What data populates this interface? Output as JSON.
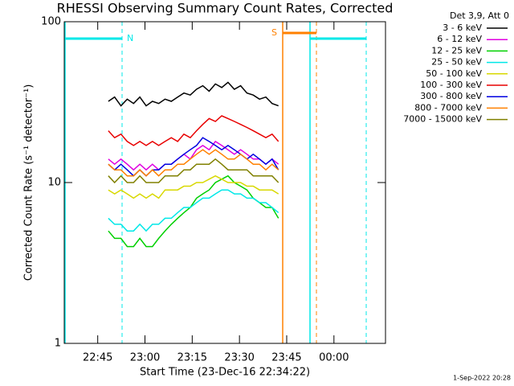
{
  "chart_data": {
    "type": "line",
    "title": "RHESSI Observing Summary Count Rates, Corrected",
    "xlabel": "Start Time (23-Dec-16 22:34:22)",
    "ylabel": "Corrected Count Rate (s⁻¹ detector⁻¹)",
    "legend_title": "Det 3,9, Att 0",
    "footer": "1-Sep-2022 20:28",
    "annotations": [
      "N",
      "S"
    ],
    "log_y": true,
    "legend": "outside right",
    "xlim": [
      0,
      102
    ],
    "ylim": [
      1,
      100
    ],
    "yticks": [
      1,
      10,
      100
    ],
    "xticks": [
      {
        "value": 10.63,
        "label": "22:45"
      },
      {
        "value": 25.63,
        "label": "23:00"
      },
      {
        "value": 40.63,
        "label": "23:15"
      },
      {
        "value": 55.63,
        "label": "23:30"
      },
      {
        "value": 70.63,
        "label": "23:45"
      },
      {
        "value": 85.63,
        "label": "00:00"
      }
    ],
    "x": [
      14,
      16,
      18,
      20,
      22,
      24,
      26,
      28,
      30,
      32,
      34,
      36,
      38,
      40,
      42,
      44,
      46,
      48,
      50,
      52,
      54,
      56,
      58,
      60,
      62,
      64,
      66,
      68
    ],
    "series": [
      {
        "name": "3 - 6 keV",
        "color": "#000000",
        "values": [
          32,
          34,
          30,
          33,
          31,
          34,
          30,
          32,
          31,
          33,
          32,
          34,
          36,
          35,
          38,
          40,
          37,
          41,
          39,
          42,
          38,
          40,
          36,
          35,
          33,
          34,
          31,
          30
        ]
      },
      {
        "name": "6 - 12 keV",
        "color": "#e000e0",
        "values": [
          14,
          13,
          14,
          13,
          12,
          13,
          12,
          13,
          12,
          13,
          13,
          14,
          15,
          14,
          16,
          17,
          16,
          18,
          17,
          16,
          15,
          16,
          15,
          14,
          14,
          13,
          14,
          13
        ]
      },
      {
        "name": "12 - 25 keV",
        "color": "#00d000",
        "values": [
          5,
          4.5,
          4.5,
          4,
          4,
          4.5,
          4,
          4,
          4.5,
          5,
          5.5,
          6,
          6.5,
          7,
          8,
          8.5,
          9,
          10,
          10.5,
          11,
          10,
          9.5,
          9,
          8,
          7.5,
          7,
          7,
          6
        ]
      },
      {
        "name": "25 - 50 keV",
        "color": "#00e8e8",
        "values": [
          6,
          5.5,
          5.5,
          5,
          5,
          5.5,
          5,
          5.5,
          5.5,
          6,
          6,
          6.5,
          7,
          7,
          7.5,
          8,
          8,
          8.5,
          9,
          9,
          8.5,
          8.5,
          8,
          8,
          7.5,
          7.5,
          7,
          6.5
        ]
      },
      {
        "name": "50 - 100 keV",
        "color": "#d8d800",
        "values": [
          9,
          8.5,
          9,
          8.5,
          8,
          8.5,
          8,
          8.5,
          8,
          9,
          9,
          9,
          9.5,
          9.5,
          10,
          10,
          10.5,
          11,
          10.5,
          10,
          10,
          10,
          9.5,
          9.5,
          9,
          9,
          9,
          8.5
        ]
      },
      {
        "name": "100 - 300 keV",
        "color": "#e80000",
        "values": [
          21,
          19,
          20,
          18,
          17,
          18,
          17,
          18,
          17,
          18,
          19,
          18,
          20,
          19,
          21,
          23,
          25,
          24,
          26,
          25,
          24,
          23,
          22,
          21,
          20,
          19,
          20,
          18
        ]
      },
      {
        "name": "300 - 800 keV",
        "color": "#0000e0",
        "values": [
          13,
          12,
          13,
          12,
          11,
          12,
          11,
          12,
          12,
          13,
          13,
          14,
          15,
          16,
          17,
          19,
          18,
          17,
          16,
          17,
          16,
          15,
          14,
          15,
          14,
          13,
          14,
          12
        ]
      },
      {
        "name": "800 - 7000 keV",
        "color": "#ff8000",
        "values": [
          13,
          12,
          12,
          11,
          11,
          12,
          11,
          12,
          11,
          12,
          12,
          13,
          13,
          14,
          15,
          16,
          15,
          16,
          15,
          14,
          14,
          15,
          14,
          13,
          13,
          12,
          13,
          12
        ]
      },
      {
        "name": "7000 - 15000 keV",
        "color": "#808000",
        "values": [
          11,
          10,
          11,
          10,
          10,
          11,
          10,
          10,
          10,
          11,
          11,
          11,
          12,
          12,
          13,
          13,
          13,
          14,
          13,
          12,
          12,
          12,
          12,
          11,
          11,
          11,
          11,
          10
        ]
      }
    ]
  }
}
